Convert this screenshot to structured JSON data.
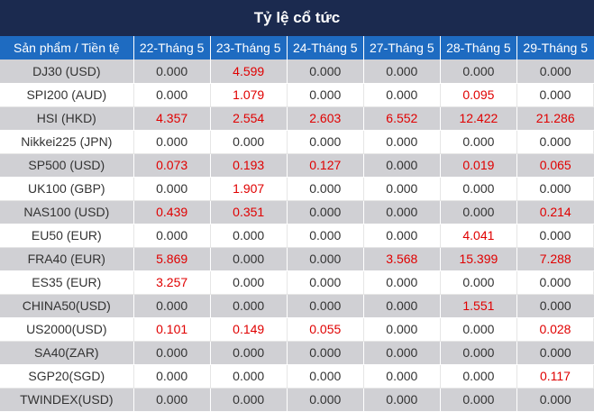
{
  "title": "Tỷ lệ cổ tức",
  "header": {
    "product_col": "Sản phẩm / Tiền tệ",
    "dates": [
      "22-Tháng 5",
      "23-Tháng 5",
      "24-Tháng 5",
      "27-Tháng 5",
      "28-Tháng 5",
      "29-Tháng 5"
    ]
  },
  "colors": {
    "title_bg": "#1b2a4f",
    "header_bg": "#1e6bc1",
    "stripe": "#d0d0d4",
    "positive_text": "#e00000"
  },
  "rows": [
    {
      "product": "DJ30 (USD)",
      "values": [
        "0.000",
        "4.599",
        "0.000",
        "0.000",
        "0.000",
        "0.000"
      ]
    },
    {
      "product": "SPI200 (AUD)",
      "values": [
        "0.000",
        "1.079",
        "0.000",
        "0.000",
        "0.095",
        "0.000"
      ]
    },
    {
      "product": "HSI (HKD)",
      "values": [
        "4.357",
        "2.554",
        "2.603",
        "6.552",
        "12.422",
        "21.286"
      ]
    },
    {
      "product": "Nikkei225 (JPN)",
      "values": [
        "0.000",
        "0.000",
        "0.000",
        "0.000",
        "0.000",
        "0.000"
      ]
    },
    {
      "product": "SP500 (USD)",
      "values": [
        "0.073",
        "0.193",
        "0.127",
        "0.000",
        "0.019",
        "0.065"
      ]
    },
    {
      "product": "UK100 (GBP)",
      "values": [
        "0.000",
        "1.907",
        "0.000",
        "0.000",
        "0.000",
        "0.000"
      ]
    },
    {
      "product": "NAS100 (USD)",
      "values": [
        "0.439",
        "0.351",
        "0.000",
        "0.000",
        "0.000",
        "0.214"
      ]
    },
    {
      "product": "EU50 (EUR)",
      "values": [
        "0.000",
        "0.000",
        "0.000",
        "0.000",
        "4.041",
        "0.000"
      ]
    },
    {
      "product": "FRA40 (EUR)",
      "values": [
        "5.869",
        "0.000",
        "0.000",
        "3.568",
        "15.399",
        "7.288"
      ]
    },
    {
      "product": "ES35 (EUR)",
      "values": [
        "3.257",
        "0.000",
        "0.000",
        "0.000",
        "0.000",
        "0.000"
      ]
    },
    {
      "product": "CHINA50(USD)",
      "values": [
        "0.000",
        "0.000",
        "0.000",
        "0.000",
        "1.551",
        "0.000"
      ]
    },
    {
      "product": "US2000(USD)",
      "values": [
        "0.101",
        "0.149",
        "0.055",
        "0.000",
        "0.000",
        "0.028"
      ]
    },
    {
      "product": "SA40(ZAR)",
      "values": [
        "0.000",
        "0.000",
        "0.000",
        "0.000",
        "0.000",
        "0.000"
      ]
    },
    {
      "product": "SGP20(SGD)",
      "values": [
        "0.000",
        "0.000",
        "0.000",
        "0.000",
        "0.000",
        "0.117"
      ]
    },
    {
      "product": "TWINDEX(USD)",
      "values": [
        "0.000",
        "0.000",
        "0.000",
        "0.000",
        "0.000",
        "0.000"
      ]
    }
  ]
}
